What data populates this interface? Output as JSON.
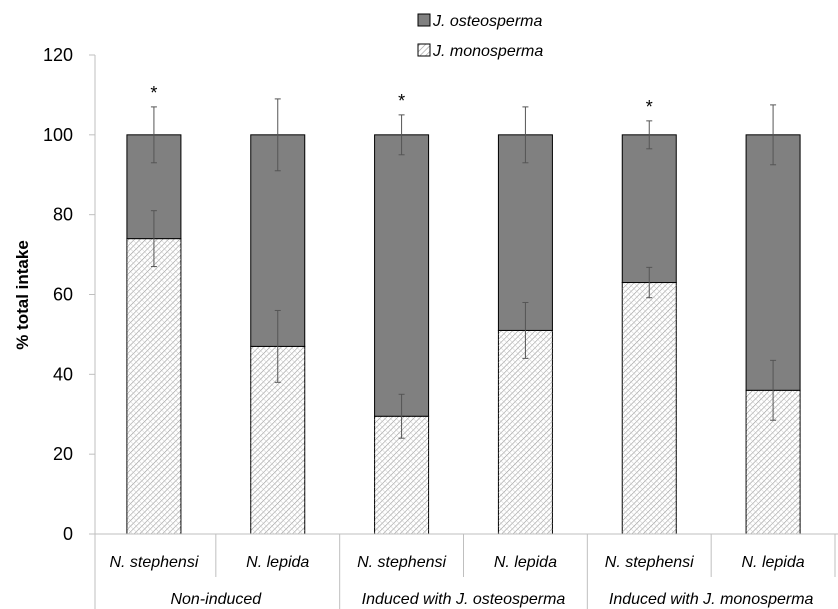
{
  "chart_data": {
    "type": "bar",
    "stacked": true,
    "ylabel": "% total intake",
    "ylim": [
      0,
      120
    ],
    "yticks": [
      0,
      20,
      40,
      60,
      80,
      100,
      120
    ],
    "categories": [
      "N. stephensi",
      "N. lepida",
      "N. stephensi",
      "N. lepida",
      "N. stephensi",
      "N. lepida"
    ],
    "groups": [
      {
        "label": "Non-induced",
        "members": [
          0,
          1
        ]
      },
      {
        "label": "Induced with J. osteosperma",
        "members": [
          2,
          3
        ]
      },
      {
        "label": "Induced with J. monosperma",
        "members": [
          4,
          5
        ]
      }
    ],
    "series": [
      {
        "name": "J. monosperma",
        "pattern": "hatched",
        "values": [
          74,
          47,
          29.5,
          51,
          63,
          36
        ],
        "error": [
          7,
          9,
          5.5,
          7,
          3.8,
          7.5
        ]
      },
      {
        "name": "J. osteosperma",
        "pattern": "solid",
        "color": "#808080",
        "values": [
          26,
          53,
          70.5,
          49,
          37,
          64
        ],
        "error": [
          7,
          9,
          5,
          7,
          3.5,
          7.5
        ]
      }
    ],
    "legend": {
      "position": "top",
      "order": [
        "J. osteosperma",
        "J. monosperma"
      ]
    },
    "significance": {
      "marker": "*",
      "categories": [
        0,
        2,
        4
      ]
    },
    "grid": false
  }
}
